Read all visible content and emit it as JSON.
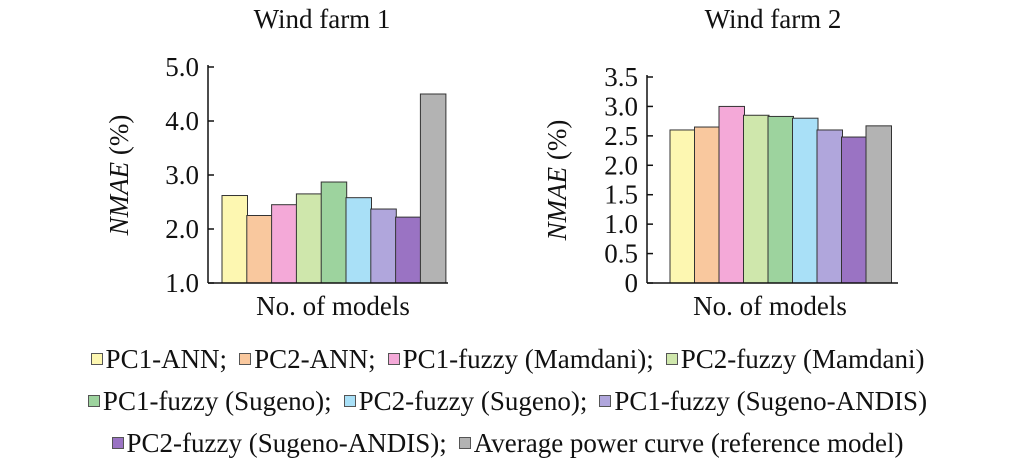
{
  "chart_data": [
    {
      "type": "bar",
      "title": "Wind farm 1",
      "xlabel": "No. of models",
      "ylabel_italic": "NMAE",
      "ylabel_unit": " (%)",
      "ylim": [
        1.0,
        5.0
      ],
      "yticks": [
        1.0,
        2.0,
        3.0,
        4.0,
        5.0
      ],
      "ytick_labels": [
        "1.0",
        "2.0",
        "3.0",
        "4.0",
        "5.0"
      ],
      "values": [
        2.62,
        2.25,
        2.45,
        2.65,
        2.87,
        2.58,
        2.37,
        2.22,
        4.5
      ]
    },
    {
      "type": "bar",
      "title": "Wind farm 2",
      "xlabel": "No. of models",
      "ylabel_italic": "NMAE",
      "ylabel_unit": " (%)",
      "ylim": [
        0,
        3.5
      ],
      "yticks": [
        0,
        0.5,
        1.0,
        1.5,
        2.0,
        2.5,
        3.0,
        3.5
      ],
      "ytick_labels": [
        "0",
        "0.5",
        "1.0",
        "1.5",
        "2.0",
        "2.5",
        "3.0",
        "3.5"
      ],
      "values": [
        2.6,
        2.65,
        3.0,
        2.85,
        2.83,
        2.8,
        2.6,
        2.48,
        2.67
      ]
    }
  ],
  "colors": [
    "#fdf7b1",
    "#f9c89e",
    "#f4a9d8",
    "#cfe7ac",
    "#9dd39e",
    "#a9e0f7",
    "#b0a6dc",
    "#9a73c3",
    "#b3b3b3"
  ],
  "legend": {
    "rows": [
      [
        {
          "label": "PC1-ANN;",
          "series": 0
        },
        {
          "label": "PC2-ANN;",
          "series": 1
        },
        {
          "label": "PC1-fuzzy (Mamdani);",
          "series": 2
        },
        {
          "label": "PC2-fuzzy (Mamdani)",
          "series": 3
        }
      ],
      [
        {
          "label": "PC1-fuzzy (Sugeno);",
          "series": 4
        },
        {
          "label": "PC2-fuzzy (Sugeno);",
          "series": 5
        },
        {
          "label": "PC1-fuzzy (Sugeno-ANDIS)",
          "series": 6
        }
      ],
      [
        {
          "label": "PC2-fuzzy (Sugeno-ANDIS);",
          "series": 7
        },
        {
          "label": "Average power curve (reference model)",
          "series": 8
        }
      ]
    ]
  }
}
